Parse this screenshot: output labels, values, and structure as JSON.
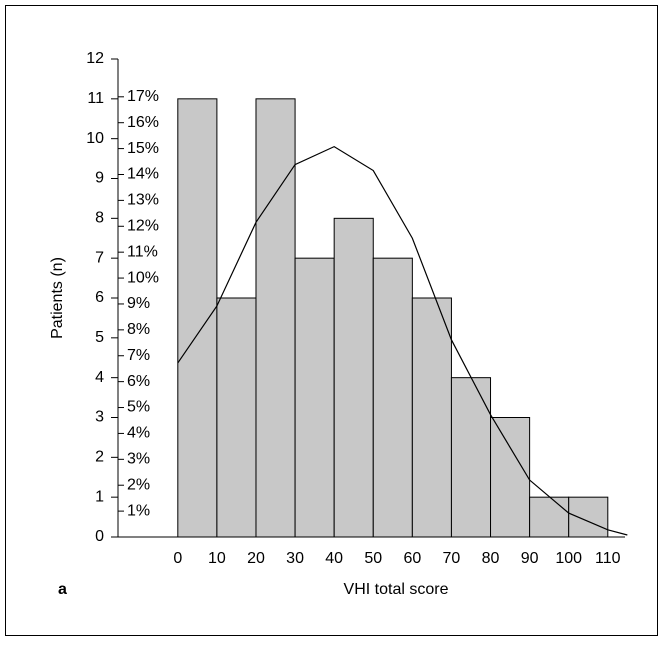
{
  "chart_data": {
    "type": "histogram",
    "panel_label": "a",
    "x_label": "VHI total score",
    "y_label": "Patients (n)",
    "bins": [
      0,
      10,
      20,
      30,
      40,
      50,
      60,
      70,
      80,
      90,
      100,
      110
    ],
    "values": [
      11,
      6,
      11,
      7,
      8,
      7,
      6,
      4,
      3,
      1,
      1
    ],
    "color": "#c8c8c8",
    "curve": {
      "x": [
        0,
        10,
        20,
        30,
        40,
        50,
        60,
        70,
        80,
        90,
        100,
        110,
        115
      ],
      "values": [
        4.37,
        5.8,
        7.9,
        9.35,
        9.8,
        9.2,
        7.5,
        4.95,
        3.07,
        1.43,
        0.6,
        0.18,
        0.05
      ]
    },
    "xlim": [
      -15.3,
      114.4
    ],
    "xticks": [
      0,
      10,
      20,
      30,
      40,
      50,
      60,
      70,
      80,
      90,
      100,
      110
    ],
    "ylim": [
      0,
      12
    ],
    "yticks": [
      0,
      1,
      2,
      3,
      4,
      5,
      6,
      7,
      8,
      9,
      10,
      11,
      12
    ],
    "y2lim": [
      0,
      18.46
    ],
    "y2ticks": [
      {
        "value": 1,
        "label": "1%"
      },
      {
        "value": 2,
        "label": "2%"
      },
      {
        "value": 3,
        "label": "3%"
      },
      {
        "value": 4,
        "label": "4%"
      },
      {
        "value": 5,
        "label": "5%"
      },
      {
        "value": 6,
        "label": "6%"
      },
      {
        "value": 7,
        "label": "7%"
      },
      {
        "value": 8,
        "label": "8%"
      },
      {
        "value": 9,
        "label": "9%"
      },
      {
        "value": 10,
        "label": "10%"
      },
      {
        "value": 11,
        "label": "11%"
      },
      {
        "value": 12,
        "label": "12%"
      },
      {
        "value": 13,
        "label": "13%"
      },
      {
        "value": 14,
        "label": "14%"
      },
      {
        "value": 15,
        "label": "15%"
      },
      {
        "value": 16,
        "label": "16%"
      },
      {
        "value": 17,
        "label": "17%"
      }
    ]
  }
}
